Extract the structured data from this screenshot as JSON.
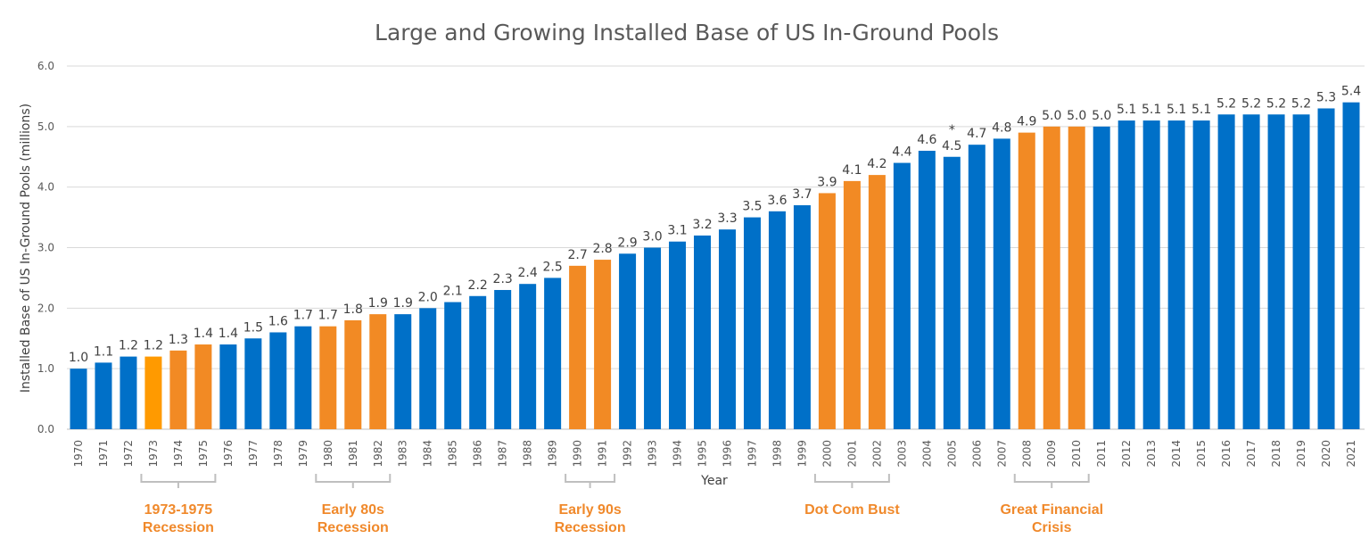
{
  "chart_data": {
    "type": "bar",
    "title": "Large and Growing Installed Base of US In-Ground Pools",
    "xlabel": "Year",
    "ylabel": "Installed Base of US In-Ground Pools (millions)",
    "ylim": [
      0,
      6
    ],
    "yticks": [
      "0.0",
      "1.0",
      "2.0",
      "3.0",
      "4.0",
      "5.0",
      "6.0"
    ],
    "grid": true,
    "categories": [
      "1970",
      "1971",
      "1972",
      "1973",
      "1974",
      "1975",
      "1976",
      "1977",
      "1978",
      "1979",
      "1980",
      "1981",
      "1982",
      "1983",
      "1984",
      "1985",
      "1986",
      "1987",
      "1988",
      "1989",
      "1990",
      "1991",
      "1992",
      "1993",
      "1994",
      "1995",
      "1996",
      "1997",
      "1998",
      "1999",
      "2000",
      "2001",
      "2002",
      "2003",
      "2004",
      "2005",
      "2006",
      "2007",
      "2008",
      "2009",
      "2010",
      "2011",
      "2012",
      "2013",
      "2014",
      "2015",
      "2016",
      "2017",
      "2018",
      "2019",
      "2020",
      "2021"
    ],
    "values": [
      1.0,
      1.1,
      1.2,
      1.2,
      1.3,
      1.4,
      1.4,
      1.5,
      1.6,
      1.7,
      1.7,
      1.8,
      1.9,
      1.9,
      2.0,
      2.1,
      2.2,
      2.3,
      2.4,
      2.5,
      2.7,
      2.8,
      2.9,
      3.0,
      3.1,
      3.2,
      3.3,
      3.5,
      3.6,
      3.7,
      3.9,
      4.1,
      4.2,
      4.4,
      4.6,
      4.5,
      4.7,
      4.8,
      4.9,
      5.0,
      5.0,
      5.0,
      5.1,
      5.1,
      5.1,
      5.1,
      5.2,
      5.2,
      5.2,
      5.2,
      5.3,
      5.4
    ],
    "data_labels": [
      "1.0",
      "1.1",
      "1.2",
      "1.2",
      "1.3",
      "1.4",
      "1.4",
      "1.5",
      "1.6",
      "1.7",
      "1.7",
      "1.8",
      "1.9",
      "1.9",
      "2.0",
      "2.1",
      "2.2",
      "2.3",
      "2.4",
      "2.5",
      "2.7",
      "2.8",
      "2.9",
      "3.0",
      "3.1",
      "3.2",
      "3.3",
      "3.5",
      "3.6",
      "3.7",
      "3.9",
      "4.1",
      "4.2",
      "4.4",
      "4.6",
      "4.5",
      "4.7",
      "4.8",
      "4.9",
      "5.0",
      "5.0",
      "5.0",
      "5.1",
      "5.1",
      "5.1",
      "5.1",
      "5.2",
      "5.2",
      "5.2",
      "5.2",
      "5.3",
      "5.4"
    ],
    "colors": {
      "default": "#0070C8",
      "recession": "#F28A24",
      "recession_1973": "#FF9A00",
      "bracket": "#BFBFBF",
      "annotation": "#F0892B"
    },
    "asterisk": {
      "year": "2005",
      "text": "*"
    },
    "recessions": [
      {
        "start": "1973",
        "end": "1975",
        "label": [
          "1973-1975",
          "Recession"
        ]
      },
      {
        "start": "1980",
        "end": "1982",
        "label": [
          "Early 80s",
          "Recession"
        ]
      },
      {
        "start": "1990",
        "end": "1991",
        "label": [
          "Early 90s",
          "Recession"
        ]
      },
      {
        "start": "2000",
        "end": "2002",
        "label": [
          "Dot Com Bust"
        ]
      },
      {
        "start": "2008",
        "end": "2010",
        "label": [
          "Great Financial",
          "Crisis"
        ]
      }
    ]
  }
}
